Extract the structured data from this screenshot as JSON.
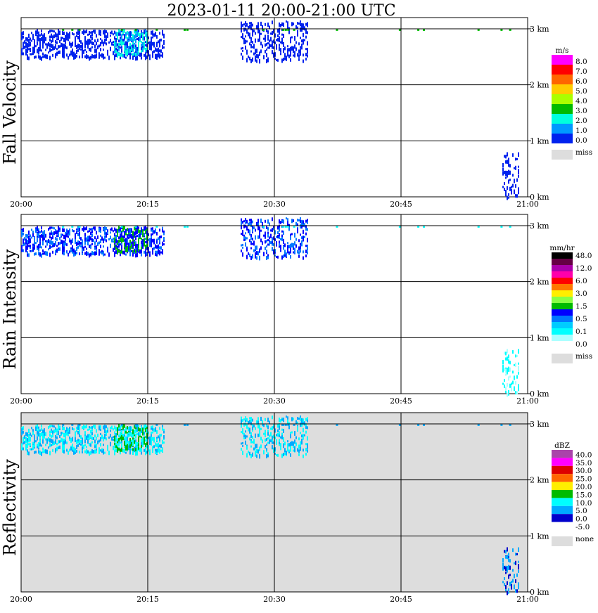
{
  "title": "2023-01-11   20:00-21:00 UTC",
  "x_ticks": [
    "20:00",
    "20:15",
    "20:30",
    "20:45",
    "21:00"
  ],
  "y_ticks": [
    "0 km",
    "1 km",
    "2 km",
    "3 km"
  ],
  "panels": [
    {
      "ylabel": "Fall Velocity",
      "legend_unit": "m/s",
      "legend": [
        {
          "label": "8.0",
          "color": "#ff00ff"
        },
        {
          "label": "7.0",
          "color": "#ff0000"
        },
        {
          "label": "6.0",
          "color": "#ff6600"
        },
        {
          "label": "5.0",
          "color": "#ffcc00"
        },
        {
          "label": "4.0",
          "color": "#aaff00"
        },
        {
          "label": "3.0",
          "color": "#00bb00"
        },
        {
          "label": "2.0",
          "color": "#00ffdd"
        },
        {
          "label": "1.0",
          "color": "#0099ff"
        },
        {
          "label": "0.0",
          "color": "#0022ee"
        }
      ],
      "miss_label": "miss",
      "background": "#ffffff"
    },
    {
      "ylabel": "Rain Intensity",
      "legend_unit": "mm/hr",
      "legend": [
        {
          "label": "48.0",
          "color": "#000000"
        },
        {
          "label": "",
          "color": "#660044"
        },
        {
          "label": "12.0",
          "color": "#aa00aa"
        },
        {
          "label": "",
          "color": "#ff00aa"
        },
        {
          "label": "6.0",
          "color": "#ff0000"
        },
        {
          "label": "",
          "color": "#ff7700"
        },
        {
          "label": "3.0",
          "color": "#ffee00"
        },
        {
          "label": "",
          "color": "#88ff44"
        },
        {
          "label": "1.5",
          "color": "#00bb00"
        },
        {
          "label": "",
          "color": "#0000ff"
        },
        {
          "label": "0.5",
          "color": "#0077ff"
        },
        {
          "label": "",
          "color": "#00ccff"
        },
        {
          "label": "0.1",
          "color": "#00ffff"
        },
        {
          "label": "",
          "color": "#aaffff"
        },
        {
          "label": "0.0",
          "color": "#ffffff"
        }
      ],
      "miss_label": "miss",
      "background": "#ffffff"
    },
    {
      "ylabel": "Reflectivity",
      "legend_unit": "dBZ",
      "legend": [
        {
          "label": "40.0",
          "color": "#aa44aa"
        },
        {
          "label": "35.0",
          "color": "#ff00ff"
        },
        {
          "label": "30.0",
          "color": "#dd0000"
        },
        {
          "label": "25.0",
          "color": "#ff6600"
        },
        {
          "label": "20.0",
          "color": "#ffee00"
        },
        {
          "label": "15.0",
          "color": "#00bb00"
        },
        {
          "label": "10.0",
          "color": "#00ffff"
        },
        {
          "label": "5.0",
          "color": "#00aaff"
        },
        {
          "label": "0.0",
          "color": "#0000cc"
        },
        {
          "label": "-5.0",
          "color": "#ffffff"
        }
      ],
      "miss_label": "none",
      "background": "#dddddd"
    }
  ],
  "chart_data": {
    "type": "heatmap",
    "x_range_minutes": [
      0,
      60
    ],
    "x_ticks": [
      "20:00",
      "20:15",
      "20:30",
      "20:45",
      "21:00"
    ],
    "y_range_km": [
      0,
      3.2
    ],
    "y_ticks_km": [
      0,
      1,
      2,
      3
    ],
    "note_values": "time-height echo: main band ~2.5-3.0 km from 20:00-20:17 and 20:28-20:34; sparse near 3 km throughout; low echo 0-0.8 km around 20:57-20:58",
    "echo_clusters": [
      {
        "t0": 0,
        "t1": 17,
        "h0": 2.5,
        "h1": 3.0,
        "fall_velocity_ms": 0.5,
        "rain_mmhr": 0.5,
        "dbz": 10
      },
      {
        "t0": 11,
        "t1": 15,
        "h0": 2.55,
        "h1": 3.0,
        "fall_velocity_ms": 2.0,
        "rain_mmhr": 1.5,
        "dbz": 15
      },
      {
        "t0": 26,
        "t1": 34,
        "h0": 2.45,
        "h1": 3.15,
        "fall_velocity_ms": 0.5,
        "rain_mmhr": 0.5,
        "dbz": 10
      },
      {
        "t0": 57,
        "t1": 59,
        "h0": 0.0,
        "h1": 0.8,
        "fall_velocity_ms": 0.5,
        "rain_mmhr": 0.1,
        "dbz": 5
      }
    ]
  }
}
